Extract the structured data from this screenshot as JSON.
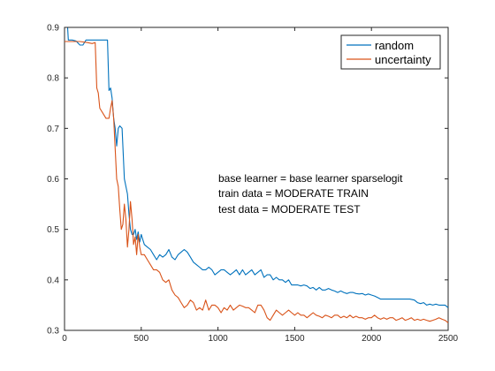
{
  "chart_data": {
    "type": "line",
    "xlim": [
      0,
      2500
    ],
    "ylim": [
      0.3,
      0.9
    ],
    "xticks": [
      0,
      500,
      1000,
      1500,
      2000,
      2500
    ],
    "xtick_labels": [
      "0",
      "500",
      "1000",
      "1500",
      "2000",
      "2500"
    ],
    "yticks": [
      0.3,
      0.4,
      0.5,
      0.6,
      0.7,
      0.8,
      0.9
    ],
    "ytick_labels": [
      "0.3",
      "0.4",
      "0.5",
      "0.6",
      "0.7",
      "0.8",
      "0.9"
    ],
    "grid": false,
    "legend_position": "top-right",
    "annotations": [
      "base learner = base learner sparselogit",
      "train data = MODERATE TRAIN",
      "test data = MODERATE TEST"
    ],
    "series": [
      {
        "name": "random",
        "color": "#0072bd",
        "points": [
          [
            0,
            0.9
          ],
          [
            20,
            0.9
          ],
          [
            25,
            0.875
          ],
          [
            50,
            0.875
          ],
          [
            75,
            0.873
          ],
          [
            100,
            0.865
          ],
          [
            120,
            0.865
          ],
          [
            140,
            0.875
          ],
          [
            160,
            0.875
          ],
          [
            200,
            0.875
          ],
          [
            250,
            0.875
          ],
          [
            280,
            0.875
          ],
          [
            290,
            0.775
          ],
          [
            300,
            0.78
          ],
          [
            310,
            0.76
          ],
          [
            320,
            0.72
          ],
          [
            330,
            0.7
          ],
          [
            340,
            0.665
          ],
          [
            350,
            0.7
          ],
          [
            360,
            0.705
          ],
          [
            375,
            0.7
          ],
          [
            390,
            0.6
          ],
          [
            410,
            0.57
          ],
          [
            420,
            0.53
          ],
          [
            430,
            0.5
          ],
          [
            440,
            0.49
          ],
          [
            450,
            0.49
          ],
          [
            460,
            0.5
          ],
          [
            470,
            0.48
          ],
          [
            480,
            0.495
          ],
          [
            490,
            0.475
          ],
          [
            500,
            0.49
          ],
          [
            510,
            0.48
          ],
          [
            520,
            0.47
          ],
          [
            540,
            0.465
          ],
          [
            560,
            0.46
          ],
          [
            580,
            0.45
          ],
          [
            600,
            0.44
          ],
          [
            620,
            0.45
          ],
          [
            640,
            0.445
          ],
          [
            660,
            0.45
          ],
          [
            680,
            0.46
          ],
          [
            700,
            0.445
          ],
          [
            720,
            0.44
          ],
          [
            740,
            0.45
          ],
          [
            760,
            0.455
          ],
          [
            780,
            0.46
          ],
          [
            800,
            0.455
          ],
          [
            820,
            0.445
          ],
          [
            840,
            0.435
          ],
          [
            860,
            0.43
          ],
          [
            880,
            0.425
          ],
          [
            900,
            0.42
          ],
          [
            920,
            0.42
          ],
          [
            940,
            0.425
          ],
          [
            960,
            0.42
          ],
          [
            980,
            0.41
          ],
          [
            1000,
            0.415
          ],
          [
            1020,
            0.42
          ],
          [
            1040,
            0.42
          ],
          [
            1060,
            0.415
          ],
          [
            1080,
            0.41
          ],
          [
            1100,
            0.415
          ],
          [
            1120,
            0.42
          ],
          [
            1140,
            0.41
          ],
          [
            1160,
            0.42
          ],
          [
            1180,
            0.41
          ],
          [
            1200,
            0.415
          ],
          [
            1220,
            0.42
          ],
          [
            1240,
            0.41
          ],
          [
            1260,
            0.415
          ],
          [
            1280,
            0.42
          ],
          [
            1300,
            0.405
          ],
          [
            1320,
            0.41
          ],
          [
            1340,
            0.41
          ],
          [
            1360,
            0.4
          ],
          [
            1380,
            0.405
          ],
          [
            1400,
            0.4
          ],
          [
            1420,
            0.4
          ],
          [
            1440,
            0.395
          ],
          [
            1460,
            0.4
          ],
          [
            1480,
            0.39
          ],
          [
            1500,
            0.39
          ],
          [
            1520,
            0.39
          ],
          [
            1540,
            0.388
          ],
          [
            1560,
            0.39
          ],
          [
            1580,
            0.388
          ],
          [
            1600,
            0.383
          ],
          [
            1620,
            0.385
          ],
          [
            1640,
            0.38
          ],
          [
            1660,
            0.385
          ],
          [
            1680,
            0.38
          ],
          [
            1700,
            0.38
          ],
          [
            1720,
            0.383
          ],
          [
            1740,
            0.38
          ],
          [
            1760,
            0.378
          ],
          [
            1780,
            0.375
          ],
          [
            1800,
            0.378
          ],
          [
            1820,
            0.375
          ],
          [
            1840,
            0.373
          ],
          [
            1860,
            0.375
          ],
          [
            1880,
            0.375
          ],
          [
            1900,
            0.373
          ],
          [
            1920,
            0.372
          ],
          [
            1940,
            0.373
          ],
          [
            1960,
            0.37
          ],
          [
            1980,
            0.372
          ],
          [
            2000,
            0.37
          ],
          [
            2020,
            0.368
          ],
          [
            2040,
            0.365
          ],
          [
            2060,
            0.362
          ],
          [
            2080,
            0.362
          ],
          [
            2100,
            0.362
          ],
          [
            2150,
            0.362
          ],
          [
            2200,
            0.362
          ],
          [
            2250,
            0.362
          ],
          [
            2280,
            0.36
          ],
          [
            2300,
            0.355
          ],
          [
            2320,
            0.353
          ],
          [
            2340,
            0.355
          ],
          [
            2360,
            0.35
          ],
          [
            2380,
            0.352
          ],
          [
            2400,
            0.35
          ],
          [
            2420,
            0.352
          ],
          [
            2440,
            0.35
          ],
          [
            2460,
            0.35
          ],
          [
            2480,
            0.35
          ],
          [
            2500,
            0.345
          ]
        ]
      },
      {
        "name": "uncertainty",
        "color": "#d95319",
        "points": [
          [
            0,
            0.872
          ],
          [
            50,
            0.872
          ],
          [
            100,
            0.872
          ],
          [
            150,
            0.87
          ],
          [
            180,
            0.868
          ],
          [
            200,
            0.87
          ],
          [
            210,
            0.78
          ],
          [
            220,
            0.77
          ],
          [
            230,
            0.74
          ],
          [
            250,
            0.73
          ],
          [
            270,
            0.72
          ],
          [
            290,
            0.72
          ],
          [
            300,
            0.74
          ],
          [
            310,
            0.755
          ],
          [
            320,
            0.72
          ],
          [
            330,
            0.66
          ],
          [
            340,
            0.6
          ],
          [
            350,
            0.585
          ],
          [
            360,
            0.54
          ],
          [
            370,
            0.5
          ],
          [
            380,
            0.51
          ],
          [
            390,
            0.55
          ],
          [
            400,
            0.52
          ],
          [
            410,
            0.465
          ],
          [
            420,
            0.5
          ],
          [
            430,
            0.555
          ],
          [
            440,
            0.52
          ],
          [
            450,
            0.47
          ],
          [
            460,
            0.485
          ],
          [
            470,
            0.45
          ],
          [
            480,
            0.49
          ],
          [
            490,
            0.465
          ],
          [
            500,
            0.45
          ],
          [
            520,
            0.45
          ],
          [
            540,
            0.44
          ],
          [
            560,
            0.43
          ],
          [
            580,
            0.42
          ],
          [
            600,
            0.42
          ],
          [
            620,
            0.415
          ],
          [
            640,
            0.4
          ],
          [
            660,
            0.395
          ],
          [
            680,
            0.4
          ],
          [
            700,
            0.38
          ],
          [
            720,
            0.37
          ],
          [
            740,
            0.365
          ],
          [
            760,
            0.355
          ],
          [
            780,
            0.345
          ],
          [
            800,
            0.35
          ],
          [
            820,
            0.36
          ],
          [
            840,
            0.355
          ],
          [
            860,
            0.34
          ],
          [
            880,
            0.345
          ],
          [
            900,
            0.34
          ],
          [
            920,
            0.36
          ],
          [
            940,
            0.34
          ],
          [
            960,
            0.35
          ],
          [
            980,
            0.35
          ],
          [
            1000,
            0.345
          ],
          [
            1020,
            0.335
          ],
          [
            1040,
            0.345
          ],
          [
            1060,
            0.34
          ],
          [
            1080,
            0.35
          ],
          [
            1100,
            0.34
          ],
          [
            1120,
            0.345
          ],
          [
            1140,
            0.35
          ],
          [
            1160,
            0.348
          ],
          [
            1180,
            0.345
          ],
          [
            1200,
            0.345
          ],
          [
            1220,
            0.34
          ],
          [
            1240,
            0.335
          ],
          [
            1260,
            0.35
          ],
          [
            1280,
            0.35
          ],
          [
            1300,
            0.34
          ],
          [
            1320,
            0.325
          ],
          [
            1340,
            0.32
          ],
          [
            1360,
            0.33
          ],
          [
            1380,
            0.34
          ],
          [
            1400,
            0.335
          ],
          [
            1420,
            0.33
          ],
          [
            1440,
            0.335
          ],
          [
            1460,
            0.34
          ],
          [
            1480,
            0.335
          ],
          [
            1500,
            0.33
          ],
          [
            1520,
            0.335
          ],
          [
            1540,
            0.33
          ],
          [
            1560,
            0.33
          ],
          [
            1580,
            0.325
          ],
          [
            1600,
            0.33
          ],
          [
            1620,
            0.335
          ],
          [
            1640,
            0.33
          ],
          [
            1660,
            0.328
          ],
          [
            1680,
            0.325
          ],
          [
            1700,
            0.33
          ],
          [
            1720,
            0.328
          ],
          [
            1740,
            0.325
          ],
          [
            1760,
            0.33
          ],
          [
            1780,
            0.33
          ],
          [
            1800,
            0.325
          ],
          [
            1820,
            0.328
          ],
          [
            1840,
            0.325
          ],
          [
            1860,
            0.33
          ],
          [
            1880,
            0.325
          ],
          [
            1900,
            0.328
          ],
          [
            1920,
            0.325
          ],
          [
            1940,
            0.325
          ],
          [
            1960,
            0.322
          ],
          [
            1980,
            0.325
          ],
          [
            2000,
            0.325
          ],
          [
            2020,
            0.33
          ],
          [
            2040,
            0.325
          ],
          [
            2060,
            0.322
          ],
          [
            2080,
            0.325
          ],
          [
            2100,
            0.322
          ],
          [
            2120,
            0.325
          ],
          [
            2140,
            0.325
          ],
          [
            2160,
            0.32
          ],
          [
            2180,
            0.322
          ],
          [
            2200,
            0.325
          ],
          [
            2220,
            0.32
          ],
          [
            2240,
            0.322
          ],
          [
            2260,
            0.325
          ],
          [
            2280,
            0.32
          ],
          [
            2300,
            0.322
          ],
          [
            2320,
            0.32
          ],
          [
            2340,
            0.322
          ],
          [
            2360,
            0.32
          ],
          [
            2380,
            0.318
          ],
          [
            2400,
            0.32
          ],
          [
            2420,
            0.322
          ],
          [
            2440,
            0.325
          ],
          [
            2460,
            0.322
          ],
          [
            2480,
            0.32
          ],
          [
            2500,
            0.315
          ]
        ]
      }
    ]
  }
}
